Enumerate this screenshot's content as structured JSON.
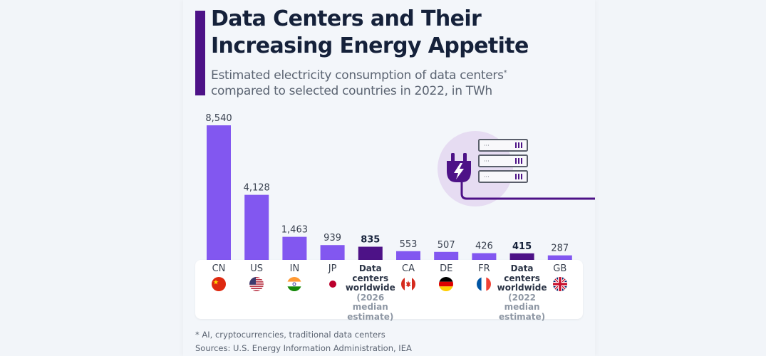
{
  "header": {
    "title_line1": "Data Centers and Their",
    "title_line2": "Increasing Energy Appetite",
    "subtitle_line1": "Estimated electricity consumption of data centers",
    "subtitle_asterisk": "*",
    "subtitle_line2": "compared to selected countries in 2022, in TWh"
  },
  "colors": {
    "country_bar": "#8257f0",
    "datacenter_bar": "#4d1287",
    "accent": "#4d1287",
    "title": "#15213a"
  },
  "chart_data": {
    "type": "bar",
    "title": "Data Centers and Their Increasing Energy Appetite",
    "subtitle": "Estimated electricity consumption of data centers* compared to selected countries in 2022, in TWh",
    "xlabel": "",
    "ylabel": "TWh",
    "ylim": [
      0,
      8540
    ],
    "grid": false,
    "categories": [
      "CN",
      "US",
      "IN",
      "JP",
      "Data centers worldwide (2026 median estimate)",
      "CA",
      "DE",
      "FR",
      "Data centers worldwide (2022 median estimate)",
      "GB"
    ],
    "values": [
      8540,
      4128,
      1463,
      939,
      835,
      553,
      507,
      426,
      415,
      287
    ],
    "value_labels": [
      "8,540",
      "4,128",
      "1,463",
      "939",
      "835",
      "553",
      "507",
      "426",
      "415",
      "287"
    ],
    "highlight": [
      false,
      false,
      false,
      false,
      true,
      false,
      false,
      false,
      true,
      false
    ]
  },
  "categories": [
    {
      "label": "CN",
      "flag": "china-flag"
    },
    {
      "label": "US",
      "flag": "usa-flag"
    },
    {
      "label": "IN",
      "flag": "india-flag"
    },
    {
      "label": "JP",
      "flag": "japan-flag"
    },
    {
      "line1": "Data",
      "line2": "centers",
      "line3": "worldwide",
      "note1": "(2026 median",
      "note2": "estimate)"
    },
    {
      "label": "CA",
      "flag": "canada-flag"
    },
    {
      "label": "DE",
      "flag": "germany-flag"
    },
    {
      "label": "FR",
      "flag": "france-flag"
    },
    {
      "line1": "Data",
      "line2": "centers",
      "line3": "worldwide",
      "note1": "(2022 median",
      "note2": "estimate)"
    },
    {
      "label": "GB",
      "flag": "uk-flag"
    }
  ],
  "illustration": {
    "icons": [
      "plug-icon",
      "server-rack-icon"
    ]
  },
  "footer": {
    "footnote": "* AI, cryptocurrencies, traditional data centers",
    "sources": "Sources: U.S. Energy Information Administration, IEA"
  }
}
